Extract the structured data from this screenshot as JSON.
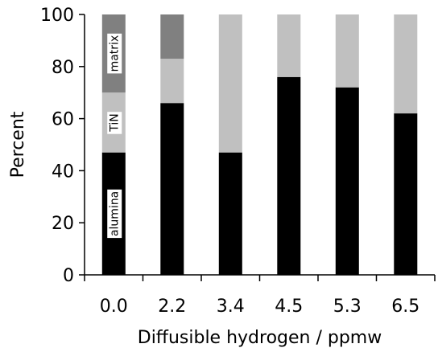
{
  "chart_data": {
    "type": "bar",
    "stacked": true,
    "categories": [
      "0.0",
      "2.2",
      "3.4",
      "4.5",
      "5.3",
      "6.5"
    ],
    "series": [
      {
        "name": "alumina",
        "values": [
          47,
          66,
          47,
          76,
          72,
          62
        ],
        "color": "#000000"
      },
      {
        "name": "TiN",
        "values": [
          23,
          17,
          53,
          24,
          28,
          38
        ],
        "color": "#c0c0c0"
      },
      {
        "name": "matrix",
        "values": [
          30,
          17,
          0,
          0,
          0,
          0
        ],
        "color": "#808080"
      }
    ],
    "title": "",
    "xlabel": "Diffusible hydrogen / ppmw",
    "ylabel": "Percent",
    "ylim": [
      0,
      100
    ],
    "yticks": [
      "0",
      "20",
      "40",
      "60",
      "80",
      "100"
    ],
    "grid": false,
    "legend": "none"
  }
}
